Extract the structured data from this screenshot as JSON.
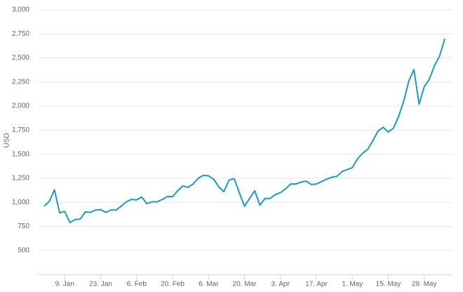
{
  "chart_data": {
    "type": "line",
    "y_label": "USD",
    "color": "#1a9bc0",
    "ylim": [
      250,
      3000
    ],
    "yticks": [
      500,
      {
        "value": 750,
        "label": "750"
      },
      {
        "value": 1000,
        "label": "1,000"
      },
      {
        "value": 1250,
        "label": "1,250"
      },
      {
        "value": 1500,
        "label": "1,500"
      },
      {
        "value": 1750,
        "label": "1,750"
      },
      {
        "value": 2000,
        "label": "2,000"
      },
      {
        "value": 2250,
        "label": "2,250"
      },
      {
        "value": 2500,
        "label": "2,500"
      },
      {
        "value": 2750,
        "label": "2,750"
      },
      {
        "value": 3000,
        "label": "3,000"
      }
    ],
    "grid": true,
    "categories": [
      null,
      null,
      null,
      null,
      "9. Jan",
      null,
      null,
      null,
      null,
      null,
      null,
      "23. Jan",
      null,
      null,
      null,
      null,
      null,
      null,
      "6. Feb",
      null,
      null,
      null,
      null,
      null,
      null,
      "20. Feb",
      null,
      null,
      null,
      null,
      null,
      null,
      "6. Mar",
      null,
      null,
      null,
      null,
      null,
      null,
      "20. Mar",
      null,
      null,
      null,
      null,
      null,
      null,
      "3. Apr",
      null,
      null,
      null,
      null,
      null,
      null,
      "17. Apr",
      null,
      null,
      null,
      null,
      null,
      null,
      "1. May",
      null,
      null,
      null,
      null,
      null,
      null,
      "15. May",
      null,
      null,
      null,
      null,
      null,
      null,
      "29. May",
      null,
      null,
      null,
      null
    ],
    "values": [
      960,
      1010,
      1130,
      890,
      905,
      790,
      820,
      825,
      900,
      895,
      920,
      925,
      895,
      920,
      920,
      960,
      1005,
      1030,
      1025,
      1055,
      985,
      1005,
      1005,
      1030,
      1060,
      1060,
      1120,
      1170,
      1155,
      1190,
      1250,
      1280,
      1275,
      1240,
      1160,
      1110,
      1230,
      1245,
      1100,
      960,
      1040,
      1120,
      970,
      1040,
      1040,
      1080,
      1100,
      1140,
      1190,
      1190,
      1210,
      1220,
      1185,
      1190,
      1215,
      1240,
      1260,
      1270,
      1320,
      1340,
      1360,
      1450,
      1510,
      1550,
      1640,
      1740,
      1780,
      1730,
      1770,
      1890,
      2050,
      2260,
      2380,
      2020,
      2200,
      2280,
      2420,
      2520,
      2700
    ]
  }
}
